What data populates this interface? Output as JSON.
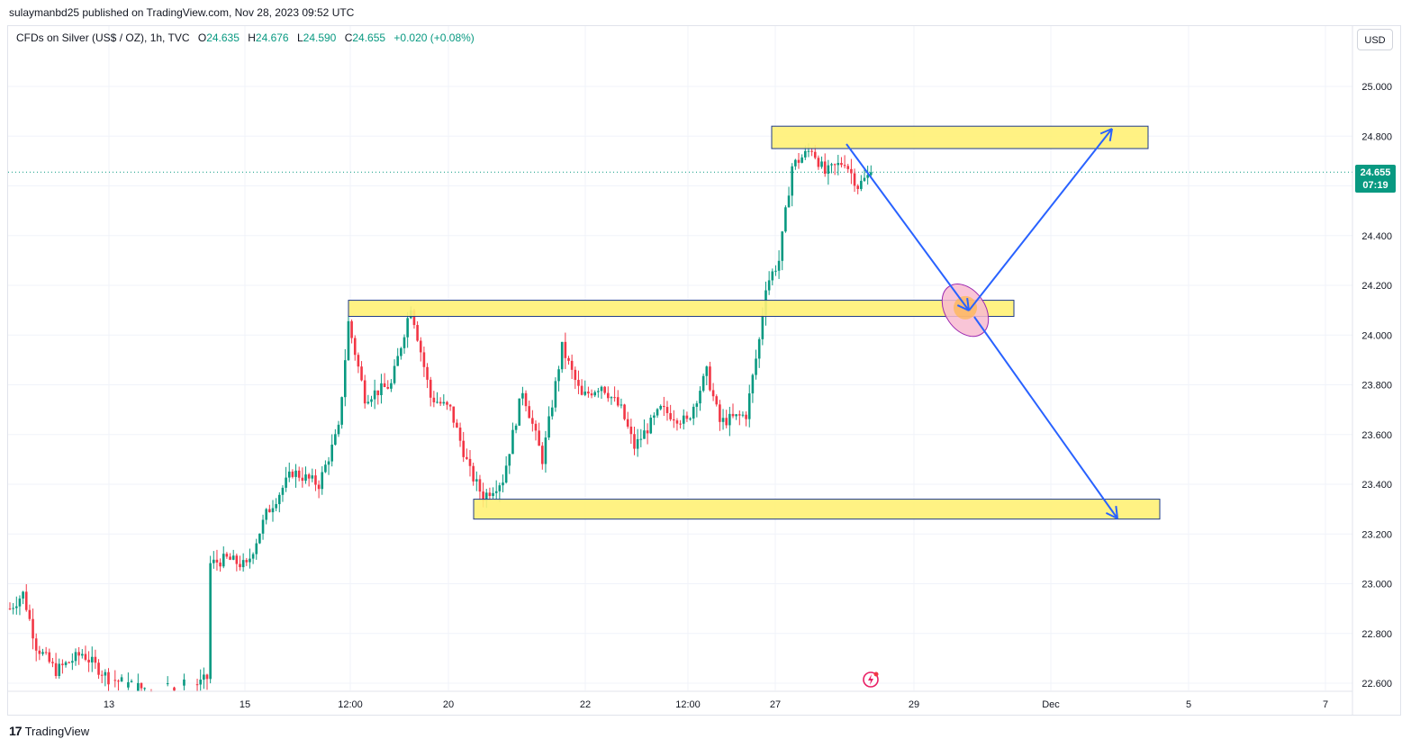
{
  "header": {
    "publisher": "sulaymanbd25 published on TradingView.com, Nov 28, 2023 09:52 UTC"
  },
  "legend": {
    "symbol": "CFDs on Silver (US$ / OZ), 1h, TVC",
    "open_label": "O",
    "open": "24.635",
    "high_label": "H",
    "high": "24.676",
    "low_label": "L",
    "low": "24.590",
    "close_label": "C",
    "close": "24.655",
    "change": "+0.020 (+0.08%)"
  },
  "currency_button": "USD",
  "last_price": {
    "price": "24.655",
    "countdown": "07:19"
  },
  "footer": {
    "brand": "TradingView",
    "logo_icon": "tradingview-logo-icon"
  },
  "colors": {
    "up": "#089981",
    "down": "#f23645",
    "zone_fill": "#fff176",
    "zone_border": "#1e3a8a",
    "arrow": "#2962ff",
    "ellipse": "#f8bbd0",
    "ellipse_border": "#9c27b0",
    "last_price_line": "#089981"
  },
  "chart_data": {
    "type": "candlestick",
    "title": "CFDs on Silver (US$ / OZ), 1h, TVC",
    "y_ticks": [
      "25.000",
      "24.800",
      "24.600",
      "24.400",
      "24.200",
      "24.000",
      "23.800",
      "23.600",
      "23.400",
      "23.200",
      "23.000",
      "22.800",
      "22.600"
    ],
    "ylim": [
      22.6,
      25.0
    ],
    "x_ticks": [
      "13",
      "15",
      "12:00",
      "20",
      "22",
      "12:00",
      "27",
      "29",
      "Dec",
      "5",
      "7"
    ],
    "price_path": [
      {
        "t": 0,
        "p": 22.9
      },
      {
        "t": 4,
        "p": 22.96
      },
      {
        "t": 8,
        "p": 22.75
      },
      {
        "t": 14,
        "p": 22.65
      },
      {
        "t": 22,
        "p": 22.72
      },
      {
        "t": 30,
        "p": 22.62
      },
      {
        "t": 40,
        "p": 22.58
      },
      {
        "t": 58,
        "p": 22.6
      },
      {
        "t": 60,
        "p": 22.62
      },
      {
        "t": 61,
        "p": 23.08
      },
      {
        "t": 66,
        "p": 23.1
      },
      {
        "t": 72,
        "p": 23.07
      },
      {
        "t": 78,
        "p": 23.28
      },
      {
        "t": 86,
        "p": 23.45
      },
      {
        "t": 94,
        "p": 23.4
      },
      {
        "t": 100,
        "p": 23.62
      },
      {
        "t": 103,
        "p": 24.05
      },
      {
        "t": 108,
        "p": 23.75
      },
      {
        "t": 116,
        "p": 23.8
      },
      {
        "t": 122,
        "p": 24.12
      },
      {
        "t": 128,
        "p": 23.75
      },
      {
        "t": 134,
        "p": 23.7
      },
      {
        "t": 140,
        "p": 23.45
      },
      {
        "t": 144,
        "p": 23.35
      },
      {
        "t": 150,
        "p": 23.42
      },
      {
        "t": 156,
        "p": 23.78
      },
      {
        "t": 162,
        "p": 23.5
      },
      {
        "t": 168,
        "p": 23.95
      },
      {
        "t": 174,
        "p": 23.75
      },
      {
        "t": 180,
        "p": 23.8
      },
      {
        "t": 186,
        "p": 23.7
      },
      {
        "t": 190,
        "p": 23.55
      },
      {
        "t": 198,
        "p": 23.7
      },
      {
        "t": 206,
        "p": 23.65
      },
      {
        "t": 212,
        "p": 23.85
      },
      {
        "t": 216,
        "p": 23.65
      },
      {
        "t": 224,
        "p": 23.68
      },
      {
        "t": 228,
        "p": 23.98
      },
      {
        "t": 230,
        "p": 24.2
      },
      {
        "t": 234,
        "p": 24.3
      },
      {
        "t": 238,
        "p": 24.68
      },
      {
        "t": 244,
        "p": 24.75
      },
      {
        "t": 248,
        "p": 24.65
      },
      {
        "t": 254,
        "p": 24.7
      },
      {
        "t": 258,
        "p": 24.6
      },
      {
        "t": 262,
        "p": 24.65
      }
    ]
  }
}
